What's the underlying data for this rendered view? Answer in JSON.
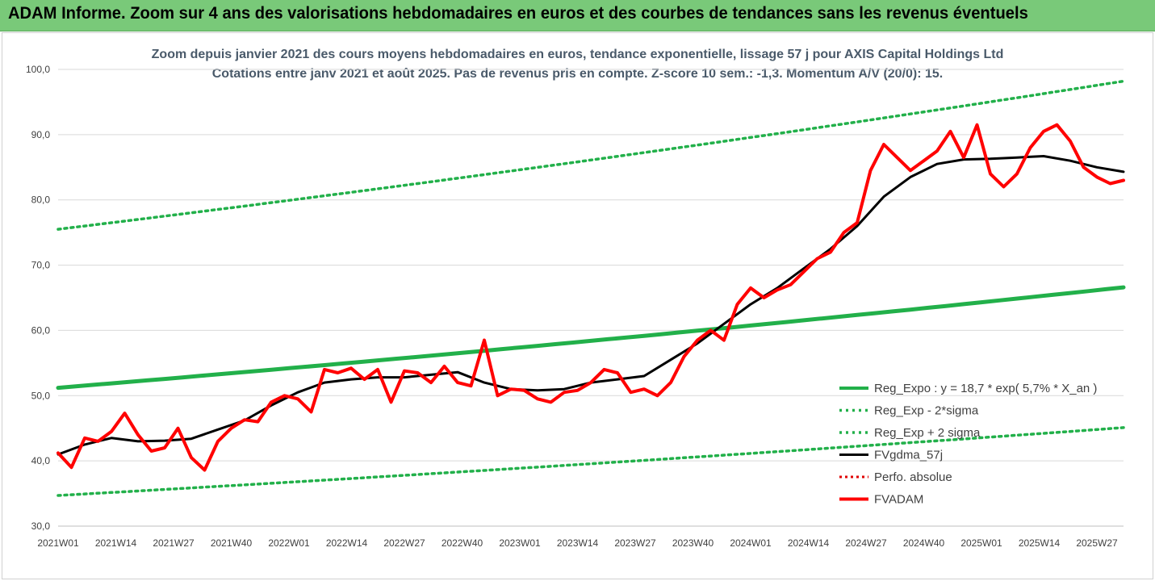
{
  "banner": {
    "title": "ADAM Informe. Zoom sur 4 ans des valorisations hebdomadaires en euros et des courbes de tendances sans les revenus éventuels"
  },
  "colors": {
    "banner": "#79c979",
    "trend": "#22b04a",
    "fvgdma": "#000000",
    "fvadam": "#ff0000",
    "perfo": "#e00000"
  },
  "chart_data": {
    "type": "line",
    "title_line1": "Zoom depuis janvier 2021 des cours moyens hebdomadaires en euros, tendance exponentielle, lissage 57 j pour AXIS Capital Holdings Ltd",
    "title_line2": "Cotations entre janv 2021 et août 2025.  Pas de revenus pris en compte. Z-score 10 sem.: -1,3. Momentum A/V (20/0): 15.",
    "xlabel": "",
    "ylabel": "",
    "ylim": [
      30,
      100
    ],
    "y_ticks": [
      "30,0",
      "40,0",
      "50,0",
      "60,0",
      "70,0",
      "80,0",
      "90,0",
      "100,0"
    ],
    "x_ticks": [
      "2021W01",
      "2021W14",
      "2021W27",
      "2021W40",
      "2022W01",
      "2022W14",
      "2022W27",
      "2022W40",
      "2023W01",
      "2023W14",
      "2023W27",
      "2023W40",
      "2024W01",
      "2024W14",
      "2024W27",
      "2024W40",
      "2025W01",
      "2025W14",
      "2025W27"
    ],
    "grid": "horizontal",
    "legend_position": "bottom-right",
    "series": [
      {
        "name": "Reg_Expo : y = 18,7 * exp( 5,7% *  X_an )",
        "style": "solid-green-thick",
        "x": [
          0,
          240
        ],
        "values": [
          51.2,
          66.6
        ]
      },
      {
        "name": "Reg_Exp - 2*sigma",
        "style": "dotted-green",
        "x": [
          0,
          240
        ],
        "values": [
          34.7,
          45.1
        ]
      },
      {
        "name": "Reg_Exp + 2 sigma",
        "style": "dotted-green",
        "x": [
          0,
          240
        ],
        "values": [
          75.5,
          98.2
        ]
      },
      {
        "name": "FVgdma_57j",
        "style": "solid-black",
        "x": [
          0,
          6,
          12,
          18,
          24,
          30,
          36,
          42,
          48,
          54,
          60,
          66,
          72,
          78,
          84,
          90,
          96,
          102,
          108,
          114,
          120,
          126,
          132,
          138,
          144,
          150,
          156,
          162,
          168,
          174,
          180,
          186,
          192,
          198,
          204,
          210,
          216,
          222,
          228,
          234,
          240
        ],
        "values": [
          41.0,
          42.5,
          43.5,
          43.0,
          43.1,
          43.4,
          44.8,
          46.2,
          48.5,
          50.5,
          52.0,
          52.5,
          52.8,
          52.8,
          53.2,
          53.6,
          52.0,
          51.0,
          50.8,
          51.0,
          52.0,
          52.5,
          53.0,
          55.5,
          58.0,
          61.0,
          64.0,
          66.5,
          69.5,
          72.5,
          76.0,
          80.5,
          83.5,
          85.5,
          86.2,
          86.3,
          86.5,
          86.7,
          86.0,
          85.0,
          84.3
        ]
      },
      {
        "name": "Perfo. absolue",
        "style": "dotted-red",
        "x": [],
        "values": []
      },
      {
        "name": "FVADAM",
        "style": "solid-red-thick",
        "x": [
          0,
          3,
          6,
          9,
          12,
          15,
          18,
          21,
          24,
          27,
          30,
          33,
          36,
          39,
          42,
          45,
          48,
          51,
          54,
          57,
          60,
          63,
          66,
          69,
          72,
          75,
          78,
          81,
          84,
          87,
          90,
          93,
          96,
          99,
          102,
          105,
          108,
          111,
          114,
          117,
          120,
          123,
          126,
          129,
          132,
          135,
          138,
          141,
          144,
          147,
          150,
          153,
          156,
          159,
          162,
          165,
          168,
          171,
          174,
          177,
          180,
          183,
          186,
          189,
          192,
          195,
          198,
          201,
          204,
          207,
          210,
          213,
          216,
          219,
          222,
          225,
          228,
          231,
          234,
          237,
          240
        ],
        "values": [
          41.2,
          39.0,
          43.5,
          43.0,
          44.5,
          47.3,
          44.0,
          41.5,
          42.0,
          45.0,
          40.5,
          38.6,
          43.0,
          45.0,
          46.3,
          46.0,
          49.0,
          50.0,
          49.5,
          47.5,
          54.0,
          53.5,
          54.2,
          52.5,
          54.0,
          49.0,
          53.8,
          53.5,
          52.0,
          54.5,
          52.0,
          51.5,
          58.5,
          50.0,
          51.0,
          50.8,
          49.5,
          49.0,
          50.5,
          50.8,
          52.0,
          54.0,
          53.5,
          50.5,
          51.0,
          50.0,
          52.0,
          56.0,
          58.5,
          60.0,
          58.5,
          64.0,
          66.5,
          65.0,
          66.2,
          67.0,
          69.0,
          71.0,
          72.0,
          75.0,
          76.5,
          84.5,
          88.5,
          86.5,
          84.5,
          86.0,
          87.5,
          90.5,
          86.5,
          91.5,
          84.0,
          82.0,
          84.0,
          88.0,
          90.5,
          91.5,
          89.0,
          85.0,
          83.5,
          82.5,
          83.0
        ]
      }
    ]
  }
}
